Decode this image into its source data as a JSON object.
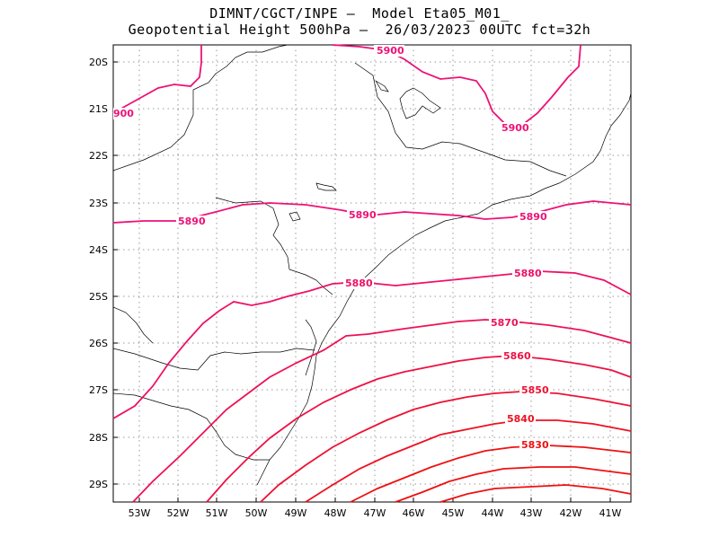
{
  "header": {
    "line1": "DIMNT/CGCT/INPE –  Model Eta05_M01_",
    "line2": "Geopotential Height 500hPa –  26/03/2023 00UTC fct=32h"
  },
  "axes": {
    "lat_labels": [
      "20S",
      "21S",
      "22S",
      "23S",
      "24S",
      "25S",
      "26S",
      "27S",
      "28S",
      "29S"
    ],
    "lon_labels": [
      "53W",
      "52W",
      "51W",
      "50W",
      "49W",
      "48W",
      "47W",
      "46W",
      "45W",
      "44W",
      "43W",
      "42W",
      "41W"
    ]
  },
  "contours": [
    {
      "value": 5900,
      "label": "5900",
      "color": "#ee1177"
    },
    {
      "value": 5890,
      "label": "5890",
      "color": "#ee1177"
    },
    {
      "value": 5880,
      "label": "5880",
      "color": "#ee1166"
    },
    {
      "value": 5870,
      "label": "5870",
      "color": "#ee1155"
    },
    {
      "value": 5860,
      "label": "5860",
      "color": "#ee1144"
    },
    {
      "value": 5850,
      "label": "5850",
      "color": "#ee1133"
    },
    {
      "value": 5840,
      "label": "5840",
      "color": "#ee1122"
    },
    {
      "value": 5830,
      "label": "5830",
      "color": "#ee1111"
    },
    {
      "value": 5820,
      "label": "",
      "color": "#ee1111"
    },
    {
      "value": 5810,
      "label": "",
      "color": "#ee1111"
    }
  ]
}
